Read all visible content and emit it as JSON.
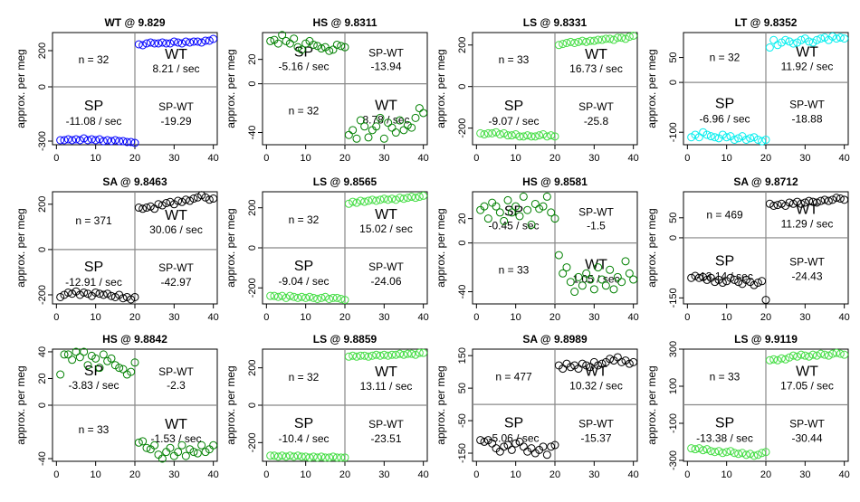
{
  "ylabel": "approx. per meg",
  "panels": [
    {
      "title": "WT @ 9.829",
      "color": "#0000ff",
      "ylim": [
        -320,
        300
      ],
      "yticks": [
        {
          "v": 200,
          "label": "200"
        },
        {
          "v": 0,
          "label": "0"
        },
        {
          "v": -300,
          "label": "-300"
        }
      ],
      "xticks": [
        0,
        10,
        20,
        30,
        40
      ],
      "quads": {
        "tl_n": "n = 32",
        "tr_label": "WT",
        "tr_rate": "8.21 / sec",
        "bl_label": "SP",
        "bl_rate": "-11.08 / sec",
        "br_label": "SP-WT",
        "br_diff": "-19.29"
      },
      "sp": [
        -295,
        -295,
        -290,
        -295,
        -290,
        -295,
        -285,
        -295,
        -290,
        -295,
        -290,
        -300,
        -295,
        -300,
        -295,
        -300,
        -300,
        -305,
        -305,
        -310
      ],
      "wt": [
        235,
        230,
        240,
        245,
        240,
        240,
        245,
        240,
        240,
        250,
        245,
        240,
        250,
        245,
        250,
        250,
        245,
        255,
        255,
        265
      ]
    },
    {
      "title": "HS @ 9.8311",
      "color": "#008000",
      "ylim": [
        -50,
        42
      ],
      "yticks": [
        {
          "v": 20,
          "label": "20"
        },
        {
          "v": 0,
          "label": "0"
        },
        {
          "v": -40,
          "label": "-40"
        }
      ],
      "xticks": [
        0,
        10,
        20,
        30,
        40
      ],
      "quads": {
        "tl_n": "",
        "tr_label": "",
        "tr_rate": "",
        "bl_label": "",
        "bl_rate": "",
        "br_label": "",
        "br_diff": ""
      },
      "quads_alt": {
        "tl_label": "SP",
        "tl_rate": "-5.16 / sec",
        "tr_label": "SP-WT",
        "tr_diff": "-13.94",
        "bl_n": "n = 32",
        "br_label": "WT",
        "br_rate": "8.78 / sec"
      },
      "sp": [
        35,
        36,
        33,
        40,
        35,
        33,
        37,
        30,
        28,
        33,
        35,
        32,
        31,
        29,
        30,
        27,
        28,
        32,
        31,
        30
      ],
      "wt": [
        -42,
        -38,
        -45,
        -30,
        -35,
        -44,
        -38,
        -35,
        -28,
        -45,
        -32,
        -36,
        -40,
        -30,
        -38,
        -34,
        -36,
        -28,
        -20,
        -24
      ]
    },
    {
      "title": "LS @ 9.8331",
      "color": "#44dd44",
      "ylim": [
        -280,
        260
      ],
      "yticks": [
        {
          "v": 200,
          "label": "200"
        },
        {
          "v": 0,
          "label": "0"
        },
        {
          "v": -200,
          "label": "-200"
        }
      ],
      "xticks": [
        0,
        10,
        20,
        30,
        40
      ],
      "quads": {
        "tl_n": "n = 33",
        "tr_label": "WT",
        "tr_rate": "16.73 / sec",
        "bl_label": "SP",
        "bl_rate": "-9.07 / sec",
        "br_label": "SP-WT",
        "br_diff": "-25.8"
      },
      "sp": [
        -225,
        -230,
        -225,
        -225,
        -220,
        -230,
        -225,
        -235,
        -235,
        -230,
        -240,
        -240,
        -235,
        -240,
        -240,
        -235,
        -230,
        -240,
        -235,
        -240
      ],
      "wt": [
        200,
        205,
        210,
        215,
        210,
        215,
        220,
        215,
        220,
        220,
        225,
        225,
        230,
        230,
        225,
        235,
        235,
        230,
        240,
        245
      ]
    },
    {
      "title": "LT @ 9.8352",
      "color": "#00eeee",
      "ylim": [
        -125,
        100
      ],
      "yticks": [
        {
          "v": 50,
          "label": "50"
        },
        {
          "v": 0,
          "label": "0"
        },
        {
          "v": -100,
          "label": "-100"
        }
      ],
      "xticks": [
        0,
        10,
        20,
        30,
        40
      ],
      "quads": {
        "tl_n": "n = 32",
        "tr_label": "WT",
        "tr_rate": "11.92 / sec",
        "bl_label": "SP",
        "bl_rate": "-6.96 / sec",
        "br_label": "SP-WT",
        "br_diff": "-18.88"
      },
      "sp": [
        -110,
        -105,
        -110,
        -100,
        -105,
        -108,
        -110,
        -112,
        -105,
        -110,
        -108,
        -115,
        -112,
        -108,
        -115,
        -112,
        -110,
        -115,
        -118,
        -115
      ],
      "wt": [
        70,
        85,
        75,
        80,
        85,
        82,
        78,
        80,
        85,
        88,
        82,
        80,
        85,
        88,
        90,
        85,
        92,
        88,
        90,
        88
      ]
    },
    {
      "title": "SA @ 9.8463",
      "color": "#000000",
      "ylim": [
        -240,
        255
      ],
      "yticks": [
        {
          "v": 200,
          "label": "200"
        },
        {
          "v": 0,
          "label": "0"
        },
        {
          "v": -200,
          "label": "-200"
        }
      ],
      "xticks": [
        0,
        10,
        20,
        30,
        40
      ],
      "quads": {
        "tl_n": "n = 371",
        "tr_label": "WT",
        "tr_rate": "30.06 / sec",
        "bl_label": "SP",
        "bl_rate": "-12.91 / sec",
        "br_label": "SP-WT",
        "br_diff": "-42.97"
      },
      "sp": [
        -210,
        -200,
        -190,
        -195,
        -185,
        -200,
        -190,
        -195,
        -205,
        -190,
        -195,
        -200,
        -195,
        -205,
        -210,
        -200,
        -215,
        -210,
        -220,
        -210
      ],
      "wt": [
        185,
        180,
        185,
        190,
        180,
        200,
        195,
        205,
        210,
        200,
        215,
        210,
        220,
        215,
        225,
        230,
        240,
        230,
        220,
        225
      ]
    },
    {
      "title": "LS @ 9.8565",
      "color": "#44dd44",
      "ylim": [
        -280,
        280
      ],
      "yticks": [
        {
          "v": 200,
          "label": "200"
        },
        {
          "v": 0,
          "label": "0"
        },
        {
          "v": -200,
          "label": "-200"
        }
      ],
      "xticks": [
        0,
        10,
        20,
        30,
        40
      ],
      "quads": {
        "tl_n": "n = 32",
        "tr_label": "WT",
        "tr_rate": "15.02 / sec",
        "bl_label": "SP",
        "bl_rate": "-9.04 / sec",
        "br_label": "SP-WT",
        "br_diff": "-24.06"
      },
      "sp": [
        -240,
        -240,
        -245,
        -240,
        -250,
        -240,
        -245,
        -250,
        -245,
        -250,
        -245,
        -250,
        -255,
        -250,
        -245,
        -255,
        -250,
        -250,
        -255,
        -260
      ],
      "wt": [
        220,
        230,
        225,
        235,
        230,
        235,
        240,
        235,
        240,
        245,
        240,
        245,
        240,
        250,
        245,
        250,
        255,
        250,
        255,
        260
      ]
    },
    {
      "title": "HS @ 9.8581",
      "color": "#008000",
      "ylim": [
        -50,
        42
      ],
      "yticks": [
        {
          "v": 20,
          "label": "20"
        },
        {
          "v": 0,
          "label": "0"
        },
        {
          "v": -40,
          "label": "-40"
        }
      ],
      "xticks": [
        0,
        10,
        20,
        30,
        40
      ],
      "quads": {
        "tl_n": "",
        "tr_label": "",
        "tr_rate": "",
        "bl_label": "",
        "bl_rate": "",
        "br_label": "",
        "br_diff": ""
      },
      "quads_alt": {
        "tl_label": "SP",
        "tl_rate": "-0.45 / sec",
        "tr_label": "SP-WT",
        "tr_diff": "-1.5",
        "bl_n": "n = 33",
        "br_label": "WT",
        "br_rate": "1.05 / sec"
      },
      "sp": [
        27,
        30,
        20,
        33,
        30,
        25,
        18,
        35,
        25,
        30,
        22,
        38,
        27,
        15,
        32,
        28,
        30,
        38,
        25,
        20
      ],
      "wt": [
        -10,
        -25,
        -20,
        -32,
        -40,
        -28,
        -35,
        -25,
        -30,
        -38,
        -20,
        -30,
        -35,
        -22,
        -38,
        -28,
        -32,
        -15,
        -25,
        -30
      ]
    },
    {
      "title": "SA @ 9.8712",
      "color": "#000000",
      "ylim": [
        -165,
        115
      ],
      "yticks": [
        {
          "v": 50,
          "label": "50"
        },
        {
          "v": 0,
          "label": "0"
        },
        {
          "v": -150,
          "label": "-150"
        }
      ],
      "xticks": [
        0,
        10,
        20,
        30,
        40
      ],
      "quads": {
        "tl_n": "n = 469",
        "tr_label": "WT",
        "tr_rate": "11.29 / sec",
        "bl_label": "SP",
        "bl_rate": "-13.14 / sec",
        "br_label": "SP-WT",
        "br_diff": "-24.43"
      },
      "sp": [
        -100,
        -95,
        -100,
        -98,
        -105,
        -100,
        -110,
        -105,
        -112,
        -108,
        -100,
        -105,
        -110,
        -115,
        -105,
        -110,
        -118,
        -112,
        -108,
        -155
      ],
      "wt": [
        85,
        80,
        82,
        85,
        80,
        88,
        85,
        90,
        85,
        88,
        92,
        90,
        88,
        92,
        95,
        92,
        95,
        100,
        98,
        95
      ]
    },
    {
      "title": "HS @ 9.8842",
      "color": "#008000",
      "ylim": [
        -42,
        42
      ],
      "yticks": [
        {
          "v": 40,
          "label": "40"
        },
        {
          "v": 20,
          "label": "20"
        },
        {
          "v": 0,
          "label": "0"
        },
        {
          "v": -40,
          "label": "-40"
        }
      ],
      "xticks": [
        0,
        10,
        20,
        30,
        40
      ],
      "quads": {
        "tl_n": "",
        "tr_label": "",
        "tr_rate": "",
        "bl_label": "",
        "bl_rate": "",
        "br_label": "",
        "br_diff": ""
      },
      "quads_alt": {
        "tl_label": "SP",
        "tl_rate": "-3.83 / sec",
        "tr_label": "SP-WT",
        "tr_diff": "-2.3",
        "bl_n": "n = 33",
        "br_label": "WT",
        "br_rate": "-1.53 / sec"
      },
      "sp": [
        23,
        38,
        38,
        34,
        40,
        36,
        40,
        30,
        37,
        35,
        28,
        38,
        33,
        35,
        30,
        28,
        27,
        23,
        25,
        32
      ],
      "wt": [
        -28,
        -27,
        -32,
        -33,
        -30,
        -37,
        -40,
        -35,
        -32,
        -38,
        -35,
        -30,
        -38,
        -33,
        -35,
        -36,
        -30,
        -35,
        -33,
        -30
      ]
    },
    {
      "title": "LS @ 9.8859",
      "color": "#44dd44",
      "ylim": [
        -300,
        300
      ],
      "yticks": [
        {
          "v": 200,
          "label": "200"
        },
        {
          "v": 0,
          "label": "0"
        },
        {
          "v": -200,
          "label": "-200"
        }
      ],
      "xticks": [
        0,
        10,
        20,
        30,
        40
      ],
      "quads": {
        "tl_n": "n = 32",
        "tr_label": "WT",
        "tr_rate": "13.11 / sec",
        "bl_label": "SP",
        "bl_rate": "-10.4 / sec",
        "br_label": "SP-WT",
        "br_diff": "-23.51"
      },
      "sp": [
        -270,
        -270,
        -275,
        -270,
        -275,
        -270,
        -275,
        -270,
        -275,
        -275,
        -280,
        -275,
        -280,
        -275,
        -280,
        -280,
        -275,
        -280,
        -280,
        -280
      ],
      "wt": [
        260,
        265,
        260,
        265,
        265,
        260,
        265,
        270,
        265,
        270,
        265,
        270,
        270,
        275,
        270,
        275,
        275,
        270,
        280,
        280
      ]
    },
    {
      "title": "SA @ 9.8989",
      "color": "#000000",
      "ylim": [
        -175,
        170
      ],
      "yticks": [
        {
          "v": 150,
          "label": "150"
        },
        {
          "v": 50,
          "label": "50"
        },
        {
          "v": -50,
          "label": "-50"
        },
        {
          "v": -150,
          "label": "-150"
        }
      ],
      "xticks": [
        0,
        10,
        20,
        30,
        40
      ],
      "quads": {
        "tl_n": "n = 477",
        "tr_label": "WT",
        "tr_rate": "10.32 / sec",
        "bl_label": "SP",
        "bl_rate": "-5.06 / sec",
        "br_label": "SP-WT",
        "br_diff": "-15.37"
      },
      "sp": [
        -110,
        -115,
        -110,
        -120,
        -135,
        -145,
        -130,
        -125,
        -140,
        -120,
        -115,
        -130,
        -145,
        -135,
        -150,
        -140,
        -130,
        -155,
        -130,
        -125
      ],
      "wt": [
        120,
        110,
        125,
        115,
        120,
        110,
        125,
        120,
        115,
        130,
        120,
        125,
        130,
        140,
        135,
        145,
        130,
        135,
        125,
        130
      ]
    },
    {
      "title": "LS @ 9.9119",
      "color": "#44dd44",
      "ylim": [
        -305,
        300
      ],
      "yticks": [
        {
          "v": 300,
          "label": "300"
        },
        {
          "v": 100,
          "label": "100"
        },
        {
          "v": -100,
          "label": "-100"
        },
        {
          "v": -300,
          "label": "-300"
        }
      ],
      "xticks": [
        0,
        10,
        20,
        30,
        40
      ],
      "quads": {
        "tl_n": "n = 33",
        "tr_label": "WT",
        "tr_rate": "17.05 / sec",
        "bl_label": "SP",
        "bl_rate": "-13.38 / sec",
        "br_label": "SP-WT",
        "br_diff": "-30.44"
      },
      "sp": [
        -235,
        -240,
        -235,
        -245,
        -240,
        -250,
        -255,
        -250,
        -260,
        -255,
        -250,
        -260,
        -265,
        -260,
        -270,
        -265,
        -275,
        -270,
        -260,
        -255
      ],
      "wt": [
        240,
        245,
        240,
        250,
        245,
        255,
        265,
        260,
        270,
        265,
        260,
        270,
        265,
        275,
        270,
        265,
        275,
        280,
        275,
        270
      ]
    }
  ],
  "chart_data": {
    "type": "scatter",
    "note": "12 panels; each panel has SP points at x=1..20 and WT points at x=21..40",
    "xlim": [
      0,
      40
    ]
  }
}
